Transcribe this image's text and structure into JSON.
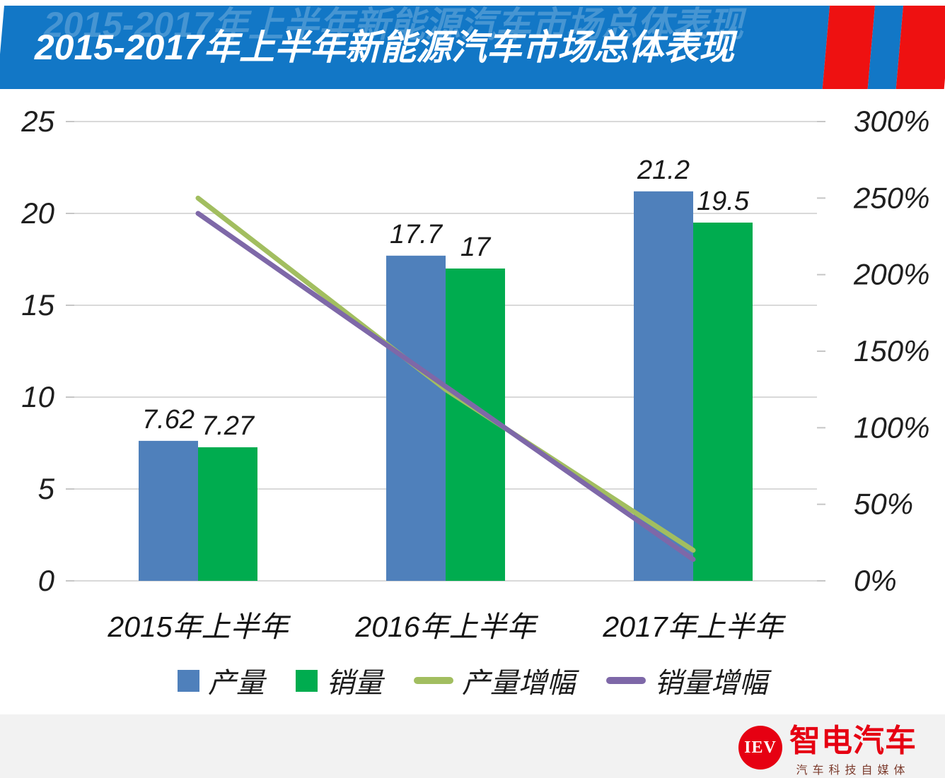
{
  "header": {
    "title": "2015-2017年上半年新能源汽车市场总体表现"
  },
  "colors": {
    "banner_blue": "#1277c6",
    "stripe_red": "#ee1111",
    "production_bar": "#4f80bb",
    "sales_bar": "#00ac4f",
    "production_growth_line": "#a2be60",
    "sales_growth_line": "#7e68a8",
    "grid": "#d9d9d9",
    "footer_bg": "#f2f2f2",
    "logo_red": "#e60012"
  },
  "chart_data": {
    "type": "bar",
    "subtype": "combo bar+line, dual axis",
    "categories": [
      "2015年上半年",
      "2016年上半年",
      "2017年上半年"
    ],
    "series": [
      {
        "key": "production",
        "name": "产量",
        "type": "bar",
        "axis": "left",
        "color": "#4f80bb",
        "values": [
          7.62,
          17.7,
          21.2
        ],
        "labels": [
          "7.62",
          "17.7",
          "21.2"
        ]
      },
      {
        "key": "sales",
        "name": "销量",
        "type": "bar",
        "axis": "left",
        "color": "#00ac4f",
        "values": [
          7.27,
          17,
          19.5
        ],
        "labels": [
          "7.27",
          "17",
          "19.5"
        ]
      },
      {
        "key": "production-growth",
        "name": "产量增幅",
        "type": "line",
        "axis": "right",
        "color": "#a2be60",
        "values_pct": [
          250,
          125,
          20
        ]
      },
      {
        "key": "sales-growth",
        "name": "销量增幅",
        "type": "line",
        "axis": "right",
        "color": "#7e68a8",
        "values_pct": [
          240,
          127,
          14
        ]
      }
    ],
    "left_axis": {
      "ticks": [
        0,
        5,
        10,
        15,
        20,
        25
      ],
      "min": 0,
      "max": 25
    },
    "right_axis": {
      "ticks": [
        "0%",
        "50%",
        "100%",
        "150%",
        "200%",
        "250%",
        "300%"
      ],
      "min_pct": 0,
      "max_pct": 300
    },
    "grid": true,
    "legend_position": "bottom"
  },
  "legend": {
    "items": [
      {
        "key": "production",
        "label": "产量",
        "marker": "square",
        "color": "#4f80bb"
      },
      {
        "key": "sales",
        "label": "销量",
        "marker": "square",
        "color": "#00ac4f"
      },
      {
        "key": "production-growth",
        "label": "产量增幅",
        "marker": "line",
        "color": "#a2be60"
      },
      {
        "key": "sales-growth",
        "label": "销量增幅",
        "marker": "line",
        "color": "#7e68a8"
      }
    ]
  },
  "footer": {
    "logo_badge": "IEV",
    "logo_name": "智电汽车",
    "logo_tagline": "汽车科技自媒体"
  }
}
